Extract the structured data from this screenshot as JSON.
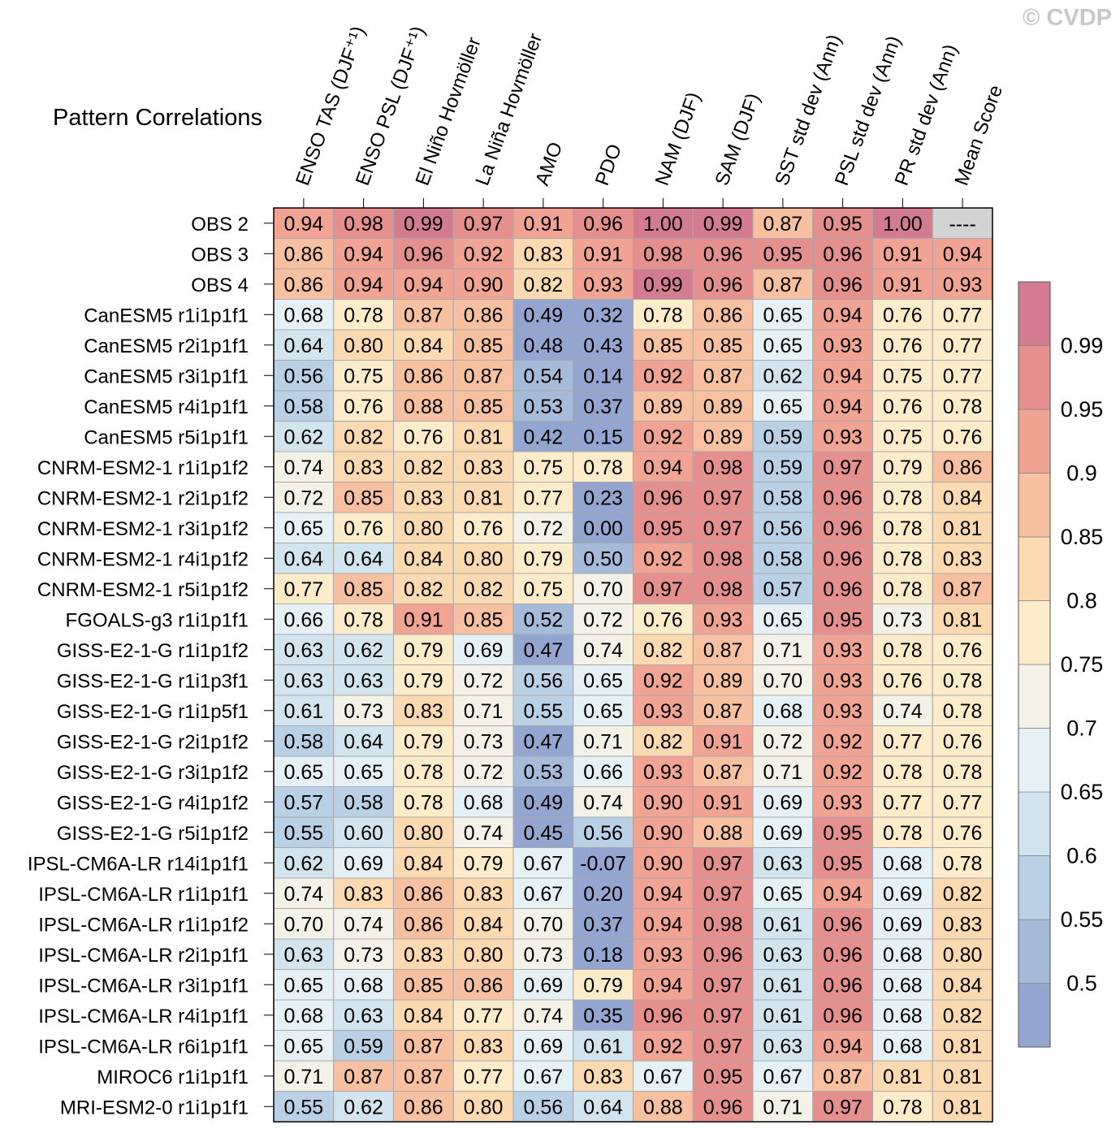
{
  "copyright": "© CVDP",
  "chart_data": {
    "type": "heatmap",
    "title": "Pattern Correlations",
    "columns": [
      "ENSO TAS (DJF⁺¹)",
      "ENSO PSL (DJF⁺¹)",
      "El Niño Hovmöller",
      "La Niña Hovmöller",
      "AMO",
      "PDO",
      "NAM (DJF)",
      "SAM (DJF)",
      "SST std dev (Ann)",
      "PSL std dev (Ann)",
      "PR std dev (Ann)",
      "Mean Score"
    ],
    "rows": [
      "OBS 2",
      "OBS 3",
      "OBS 4",
      "CanESM5 r1i1p1f1",
      "CanESM5 r2i1p1f1",
      "CanESM5 r3i1p1f1",
      "CanESM5 r4i1p1f1",
      "CanESM5 r5i1p1f1",
      "CNRM-ESM2-1 r1i1p1f2",
      "CNRM-ESM2-1 r2i1p1f2",
      "CNRM-ESM2-1 r3i1p1f2",
      "CNRM-ESM2-1 r4i1p1f2",
      "CNRM-ESM2-1 r5i1p1f2",
      "FGOALS-g3 r1i1p1f1",
      "GISS-E2-1-G r1i1p1f2",
      "GISS-E2-1-G r1i1p3f1",
      "GISS-E2-1-G r1i1p5f1",
      "GISS-E2-1-G r2i1p1f2",
      "GISS-E2-1-G r3i1p1f2",
      "GISS-E2-1-G r4i1p1f2",
      "GISS-E2-1-G r5i1p1f2",
      "IPSL-CM6A-LR r14i1p1f1",
      "IPSL-CM6A-LR r1i1p1f1",
      "IPSL-CM6A-LR r1i1p1f2",
      "IPSL-CM6A-LR r2i1p1f1",
      "IPSL-CM6A-LR r3i1p1f1",
      "IPSL-CM6A-LR r4i1p1f1",
      "IPSL-CM6A-LR r6i1p1f1",
      "MIROC6 r1i1p1f1",
      "MRI-ESM2-0 r1i1p1f1"
    ],
    "values": [
      [
        "0.94",
        "0.98",
        "0.99",
        "0.97",
        "0.91",
        "0.96",
        "1.00",
        "0.99",
        "0.87",
        "0.95",
        "1.00",
        "----"
      ],
      [
        "0.86",
        "0.94",
        "0.96",
        "0.92",
        "0.83",
        "0.91",
        "0.98",
        "0.96",
        "0.95",
        "0.96",
        "0.91",
        "0.94"
      ],
      [
        "0.86",
        "0.94",
        "0.94",
        "0.90",
        "0.82",
        "0.93",
        "0.99",
        "0.96",
        "0.87",
        "0.96",
        "0.91",
        "0.93"
      ],
      [
        "0.68",
        "0.78",
        "0.87",
        "0.86",
        "0.49",
        "0.32",
        "0.78",
        "0.86",
        "0.65",
        "0.94",
        "0.76",
        "0.77"
      ],
      [
        "0.64",
        "0.80",
        "0.84",
        "0.85",
        "0.48",
        "0.43",
        "0.85",
        "0.85",
        "0.65",
        "0.93",
        "0.76",
        "0.77"
      ],
      [
        "0.56",
        "0.75",
        "0.86",
        "0.87",
        "0.54",
        "0.14",
        "0.92",
        "0.87",
        "0.62",
        "0.94",
        "0.75",
        "0.77"
      ],
      [
        "0.58",
        "0.76",
        "0.88",
        "0.85",
        "0.53",
        "0.37",
        "0.89",
        "0.89",
        "0.65",
        "0.94",
        "0.76",
        "0.78"
      ],
      [
        "0.62",
        "0.82",
        "0.76",
        "0.81",
        "0.42",
        "0.15",
        "0.92",
        "0.89",
        "0.59",
        "0.93",
        "0.75",
        "0.76"
      ],
      [
        "0.74",
        "0.83",
        "0.82",
        "0.83",
        "0.75",
        "0.78",
        "0.94",
        "0.98",
        "0.59",
        "0.97",
        "0.79",
        "0.86"
      ],
      [
        "0.72",
        "0.85",
        "0.83",
        "0.81",
        "0.77",
        "0.23",
        "0.96",
        "0.97",
        "0.58",
        "0.96",
        "0.78",
        "0.84"
      ],
      [
        "0.65",
        "0.76",
        "0.80",
        "0.76",
        "0.72",
        "0.00",
        "0.95",
        "0.97",
        "0.56",
        "0.96",
        "0.78",
        "0.81"
      ],
      [
        "0.64",
        "0.64",
        "0.84",
        "0.80",
        "0.79",
        "0.50",
        "0.92",
        "0.98",
        "0.58",
        "0.96",
        "0.78",
        "0.83"
      ],
      [
        "0.77",
        "0.85",
        "0.82",
        "0.82",
        "0.75",
        "0.70",
        "0.97",
        "0.98",
        "0.57",
        "0.96",
        "0.78",
        "0.87"
      ],
      [
        "0.66",
        "0.78",
        "0.91",
        "0.85",
        "0.52",
        "0.72",
        "0.76",
        "0.93",
        "0.65",
        "0.95",
        "0.73",
        "0.81"
      ],
      [
        "0.63",
        "0.62",
        "0.79",
        "0.69",
        "0.47",
        "0.74",
        "0.82",
        "0.87",
        "0.71",
        "0.93",
        "0.78",
        "0.76"
      ],
      [
        "0.63",
        "0.63",
        "0.79",
        "0.72",
        "0.56",
        "0.65",
        "0.92",
        "0.89",
        "0.70",
        "0.93",
        "0.76",
        "0.78"
      ],
      [
        "0.61",
        "0.73",
        "0.83",
        "0.71",
        "0.55",
        "0.65",
        "0.93",
        "0.87",
        "0.68",
        "0.93",
        "0.74",
        "0.78"
      ],
      [
        "0.58",
        "0.64",
        "0.79",
        "0.73",
        "0.47",
        "0.71",
        "0.82",
        "0.91",
        "0.72",
        "0.92",
        "0.77",
        "0.76"
      ],
      [
        "0.65",
        "0.65",
        "0.78",
        "0.72",
        "0.53",
        "0.66",
        "0.93",
        "0.87",
        "0.71",
        "0.92",
        "0.78",
        "0.78"
      ],
      [
        "0.57",
        "0.58",
        "0.78",
        "0.68",
        "0.49",
        "0.74",
        "0.90",
        "0.91",
        "0.69",
        "0.93",
        "0.77",
        "0.77"
      ],
      [
        "0.55",
        "0.60",
        "0.80",
        "0.74",
        "0.45",
        "0.56",
        "0.90",
        "0.88",
        "0.69",
        "0.95",
        "0.78",
        "0.76"
      ],
      [
        "0.62",
        "0.69",
        "0.84",
        "0.79",
        "0.67",
        "-0.07",
        "0.90",
        "0.97",
        "0.63",
        "0.95",
        "0.68",
        "0.78"
      ],
      [
        "0.74",
        "0.83",
        "0.86",
        "0.83",
        "0.67",
        "0.20",
        "0.94",
        "0.97",
        "0.65",
        "0.94",
        "0.69",
        "0.82"
      ],
      [
        "0.70",
        "0.74",
        "0.86",
        "0.84",
        "0.70",
        "0.37",
        "0.94",
        "0.98",
        "0.61",
        "0.96",
        "0.69",
        "0.83"
      ],
      [
        "0.63",
        "0.73",
        "0.83",
        "0.80",
        "0.73",
        "0.18",
        "0.93",
        "0.96",
        "0.63",
        "0.96",
        "0.68",
        "0.80"
      ],
      [
        "0.65",
        "0.68",
        "0.85",
        "0.86",
        "0.69",
        "0.79",
        "0.94",
        "0.97",
        "0.61",
        "0.96",
        "0.68",
        "0.84"
      ],
      [
        "0.68",
        "0.63",
        "0.84",
        "0.77",
        "0.74",
        "0.35",
        "0.96",
        "0.97",
        "0.61",
        "0.96",
        "0.68",
        "0.82"
      ],
      [
        "0.65",
        "0.59",
        "0.87",
        "0.83",
        "0.69",
        "0.61",
        "0.92",
        "0.97",
        "0.63",
        "0.94",
        "0.68",
        "0.81"
      ],
      [
        "0.71",
        "0.87",
        "0.87",
        "0.77",
        "0.67",
        "0.83",
        "0.67",
        "0.95",
        "0.67",
        "0.87",
        "0.81",
        "0.81"
      ],
      [
        "0.55",
        "0.62",
        "0.86",
        "0.80",
        "0.56",
        "0.64",
        "0.88",
        "0.96",
        "0.71",
        "0.97",
        "0.78",
        "0.81"
      ]
    ],
    "missing_value_label": "----",
    "colorbar": {
      "levels": [
        "0.5",
        "0.55",
        "0.6",
        "0.65",
        "0.7",
        "0.75",
        "0.8",
        "0.85",
        "0.9",
        "0.95",
        "0.99"
      ],
      "colors": [
        "#94a6cf",
        "#a6bad9",
        "#bad1e5",
        "#d2e5ef",
        "#e5f1f5",
        "#f4f2e6",
        "#fdecc9",
        "#fbd9b1",
        "#f7c1a1",
        "#f1a493",
        "#e68f8f",
        "#d47c8f"
      ],
      "missing_color": "#d3d3d3"
    }
  }
}
